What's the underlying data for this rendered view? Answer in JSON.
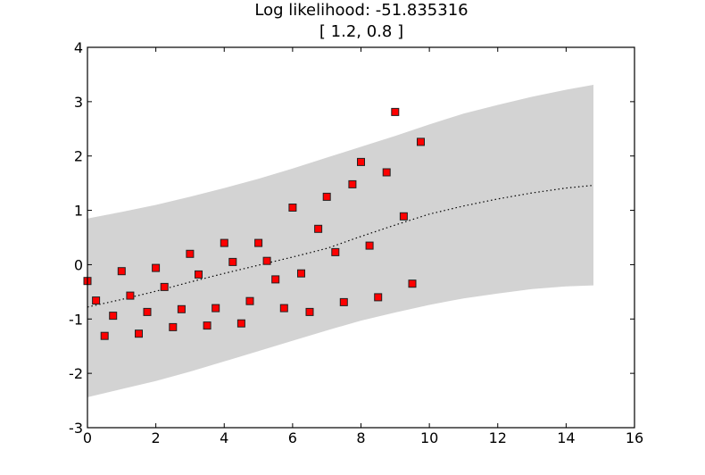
{
  "chart_data": {
    "type": "scatter",
    "title": "Log likelihood: -51.835316",
    "subtitle": "[ 1.2, 0.8 ]",
    "xlabel": "",
    "ylabel": "",
    "xlim": [
      0,
      16
    ],
    "ylim": [
      -3,
      4
    ],
    "xticks": [
      0,
      2,
      4,
      6,
      8,
      10,
      12,
      14,
      16
    ],
    "yticks": [
      -3,
      -2,
      -1,
      0,
      1,
      2,
      3,
      4
    ],
    "grid": false,
    "legend": "none",
    "colors": {
      "points": "#ff0000",
      "point_edge": "#222222",
      "band": "#d3d3d3",
      "mean": "#000000",
      "axes": "#000000"
    },
    "points": [
      {
        "x": 0.0,
        "y": -0.3
      },
      {
        "x": 0.25,
        "y": -0.66
      },
      {
        "x": 0.5,
        "y": -1.31
      },
      {
        "x": 0.75,
        "y": -0.94
      },
      {
        "x": 1.0,
        "y": -0.12
      },
      {
        "x": 1.25,
        "y": -0.57
      },
      {
        "x": 1.5,
        "y": -1.27
      },
      {
        "x": 1.75,
        "y": -0.87
      },
      {
        "x": 2.0,
        "y": -0.06
      },
      {
        "x": 2.25,
        "y": -0.41
      },
      {
        "x": 2.5,
        "y": -1.15
      },
      {
        "x": 2.75,
        "y": -0.82
      },
      {
        "x": 3.0,
        "y": 0.2
      },
      {
        "x": 3.25,
        "y": -0.18
      },
      {
        "x": 3.5,
        "y": -1.12
      },
      {
        "x": 3.75,
        "y": -0.8
      },
      {
        "x": 4.0,
        "y": 0.4
      },
      {
        "x": 4.25,
        "y": 0.05
      },
      {
        "x": 4.5,
        "y": -1.08
      },
      {
        "x": 4.75,
        "y": -0.67
      },
      {
        "x": 5.0,
        "y": 0.4
      },
      {
        "x": 5.25,
        "y": 0.07
      },
      {
        "x": 5.5,
        "y": -0.27
      },
      {
        "x": 5.75,
        "y": -0.8
      },
      {
        "x": 6.0,
        "y": 1.05
      },
      {
        "x": 6.25,
        "y": -0.16
      },
      {
        "x": 6.5,
        "y": -0.87
      },
      {
        "x": 6.75,
        "y": 0.66
      },
      {
        "x": 7.0,
        "y": 1.25
      },
      {
        "x": 7.25,
        "y": 0.23
      },
      {
        "x": 7.5,
        "y": -0.69
      },
      {
        "x": 7.75,
        "y": 1.48
      },
      {
        "x": 8.0,
        "y": 1.89
      },
      {
        "x": 8.25,
        "y": 0.35
      },
      {
        "x": 8.5,
        "y": -0.6
      },
      {
        "x": 8.75,
        "y": 1.7
      },
      {
        "x": 9.0,
        "y": 2.81
      },
      {
        "x": 9.25,
        "y": 0.89
      },
      {
        "x": 9.5,
        "y": -0.35
      },
      {
        "x": 9.75,
        "y": 2.26
      }
    ],
    "mean_curve": [
      {
        "x": 0.0,
        "y": -0.78
      },
      {
        "x": 1.0,
        "y": -0.64
      },
      {
        "x": 2.0,
        "y": -0.49
      },
      {
        "x": 3.0,
        "y": -0.32
      },
      {
        "x": 4.0,
        "y": -0.16
      },
      {
        "x": 5.0,
        "y": -0.01
      },
      {
        "x": 6.0,
        "y": 0.14
      },
      {
        "x": 7.0,
        "y": 0.3
      },
      {
        "x": 8.0,
        "y": 0.52
      },
      {
        "x": 9.0,
        "y": 0.73
      },
      {
        "x": 10.0,
        "y": 0.93
      },
      {
        "x": 11.0,
        "y": 1.08
      },
      {
        "x": 12.0,
        "y": 1.21
      },
      {
        "x": 13.0,
        "y": 1.32
      },
      {
        "x": 14.0,
        "y": 1.41
      },
      {
        "x": 14.8,
        "y": 1.46
      }
    ],
    "band_upper": [
      {
        "x": 0.0,
        "y": 0.85
      },
      {
        "x": 1.0,
        "y": 0.97
      },
      {
        "x": 2.0,
        "y": 1.1
      },
      {
        "x": 3.0,
        "y": 1.25
      },
      {
        "x": 4.0,
        "y": 1.41
      },
      {
        "x": 5.0,
        "y": 1.58
      },
      {
        "x": 6.0,
        "y": 1.77
      },
      {
        "x": 7.0,
        "y": 1.97
      },
      {
        "x": 8.0,
        "y": 2.17
      },
      {
        "x": 9.0,
        "y": 2.37
      },
      {
        "x": 10.0,
        "y": 2.58
      },
      {
        "x": 11.0,
        "y": 2.78
      },
      {
        "x": 12.0,
        "y": 2.94
      },
      {
        "x": 13.0,
        "y": 3.09
      },
      {
        "x": 14.0,
        "y": 3.22
      },
      {
        "x": 14.8,
        "y": 3.31
      }
    ],
    "band_lower": [
      {
        "x": 0.0,
        "y": -2.44
      },
      {
        "x": 1.0,
        "y": -2.29
      },
      {
        "x": 2.0,
        "y": -2.14
      },
      {
        "x": 3.0,
        "y": -1.97
      },
      {
        "x": 4.0,
        "y": -1.78
      },
      {
        "x": 5.0,
        "y": -1.59
      },
      {
        "x": 6.0,
        "y": -1.4
      },
      {
        "x": 7.0,
        "y": -1.21
      },
      {
        "x": 8.0,
        "y": -1.03
      },
      {
        "x": 9.0,
        "y": -0.88
      },
      {
        "x": 10.0,
        "y": -0.74
      },
      {
        "x": 11.0,
        "y": -0.62
      },
      {
        "x": 12.0,
        "y": -0.53
      },
      {
        "x": 13.0,
        "y": -0.45
      },
      {
        "x": 14.0,
        "y": -0.4
      },
      {
        "x": 14.8,
        "y": -0.38
      }
    ]
  }
}
